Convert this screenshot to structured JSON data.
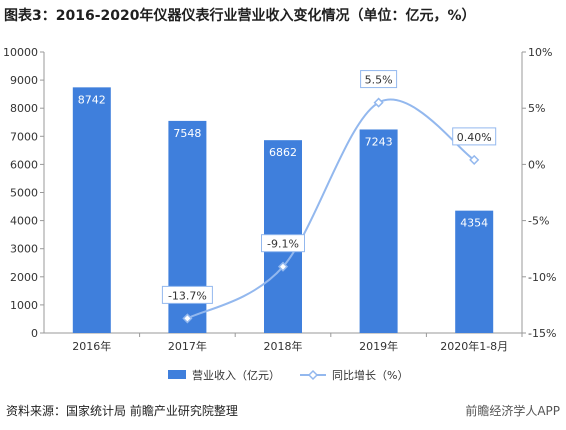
{
  "title": "图表3：2016-2020年仪器仪表行业营业收入变化情况（单位：亿元，%）",
  "source": "资料来源：国家统计局 前瞻产业研究院整理",
  "brand": "前瞻经济学人APP",
  "colors": {
    "bar": "#3f7fdc",
    "line": "#93b8ee",
    "axis": "#999999",
    "text": "#333333"
  },
  "chart_data": {
    "type": "bar",
    "categories": [
      "2016年",
      "2017年",
      "2018年",
      "2019年",
      "2020年1-8月"
    ],
    "series": [
      {
        "name": "营业收入（亿元）",
        "type": "bar",
        "axis": "left",
        "values": [
          8742,
          7548,
          6862,
          7243,
          4354
        ],
        "labels": [
          "8742",
          "7548",
          "6862",
          "7243",
          "4354"
        ]
      },
      {
        "name": "同比增长（%）",
        "type": "line",
        "axis": "right",
        "values": [
          null,
          -13.7,
          -9.1,
          5.5,
          0.4
        ],
        "labels": [
          "",
          "-13.7%",
          "-9.1%",
          "5.5%",
          "0.40%"
        ]
      }
    ],
    "y_left": {
      "min": 0,
      "max": 10000,
      "ticks": [
        "0",
        "1000",
        "2000",
        "3000",
        "4000",
        "5000",
        "6000",
        "7000",
        "8000",
        "9000",
        "10000"
      ]
    },
    "y_right": {
      "min": -15,
      "max": 10,
      "ticks": [
        "-15%",
        "-10%",
        "-5%",
        "0%",
        "5%",
        "10%"
      ]
    },
    "legend_position": "bottom",
    "grid": false
  }
}
